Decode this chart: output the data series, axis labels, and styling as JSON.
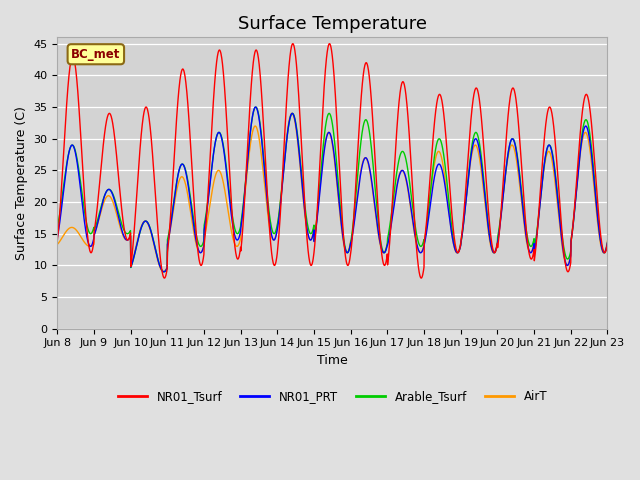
{
  "title": "Surface Temperature",
  "ylabel": "Surface Temperature (C)",
  "xlabel": "Time",
  "annotation": "BC_met",
  "ylim": [
    0,
    46
  ],
  "yticks": [
    0,
    5,
    10,
    15,
    20,
    25,
    30,
    35,
    40,
    45
  ],
  "x_tick_labels": [
    "Jun 8",
    "Jun 9",
    "Jun 10",
    "Jun 11",
    "Jun 12",
    "Jun 13",
    "Jun 14",
    "Jun 15",
    "Jun 16",
    "Jun 17",
    "Jun 18",
    "Jun 19",
    "Jun 20",
    "Jun 21",
    "Jun 22",
    "Jun 23"
  ],
  "series_colors": {
    "NR01_Tsurf": "#ff0000",
    "NR01_PRT": "#0000ff",
    "Arable_Tsurf": "#00cc00",
    "AirT": "#ff9900"
  },
  "background_color": "#e0e0e0",
  "plot_bg_color": "#d3d3d3",
  "title_fontsize": 13,
  "label_fontsize": 9,
  "tick_fontsize": 8,
  "day_peaks_nr01": [
    43,
    34,
    35,
    41,
    44,
    44,
    45,
    45,
    42,
    39,
    37,
    38,
    38,
    35,
    37
  ],
  "day_mins_nr01": [
    12,
    14,
    8,
    10,
    11,
    10,
    10,
    10,
    10,
    8,
    12,
    12,
    11,
    9,
    12
  ],
  "day_peaks_prt": [
    29,
    22,
    17,
    26,
    31,
    35,
    34,
    31,
    27,
    25,
    26,
    30,
    30,
    29,
    32
  ],
  "day_mins_prt": [
    13,
    14,
    9,
    12,
    14,
    14,
    14,
    12,
    12,
    12,
    12,
    12,
    12,
    10,
    12
  ],
  "day_peaks_arable": [
    29,
    22,
    17,
    26,
    31,
    35,
    34,
    34,
    33,
    28,
    30,
    31,
    30,
    29,
    33
  ],
  "day_mins_arable": [
    15,
    15,
    9,
    13,
    15,
    15,
    15,
    12,
    12,
    13,
    12,
    12,
    13,
    11,
    12
  ],
  "day_peaks_air": [
    16,
    21,
    17,
    24,
    25,
    32,
    34,
    31,
    27,
    25,
    28,
    29,
    29,
    28,
    31
  ],
  "day_mins_air": [
    13,
    14,
    9,
    12,
    13,
    14,
    14,
    12,
    12,
    12,
    12,
    12,
    12,
    10,
    12
  ],
  "n_per_day": 144,
  "trough_hour": 4,
  "peak_hour": 14
}
